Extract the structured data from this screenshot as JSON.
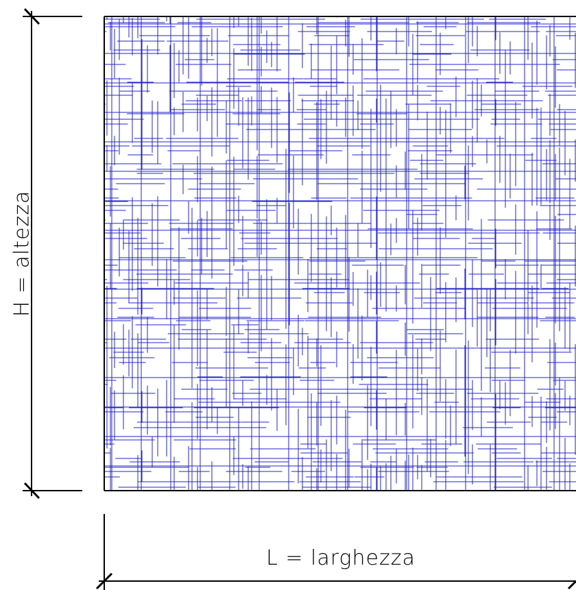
{
  "diagram": {
    "height_label": "H = altezza",
    "width_label": "L = larghezza",
    "hatch_color": "#2323c8",
    "line_color": "#000000",
    "pattern": "random-crosshatch"
  }
}
